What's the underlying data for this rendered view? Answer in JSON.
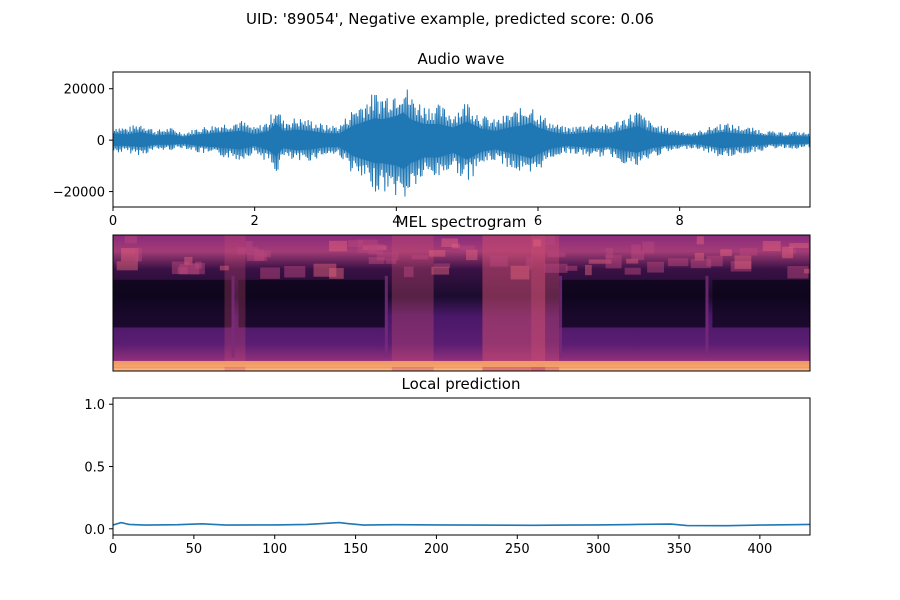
{
  "figure": {
    "suptitle": "UID: '89054', Negative example, predicted score: 0.06"
  },
  "colors": {
    "line": "#1f77b4"
  },
  "chart_data": [
    {
      "type": "line",
      "title": "Audio wave",
      "xlabel": "",
      "ylabel": "",
      "xlim": [
        0,
        9.84
      ],
      "ylim": [
        -26000,
        26500
      ],
      "x_ticks": [
        0,
        2,
        4,
        6,
        8
      ],
      "x_tick_labels": [
        "0",
        "2",
        "4",
        "6",
        "8"
      ],
      "y_ticks": [
        -20000,
        0,
        20000
      ],
      "y_tick_labels": [
        "−20000",
        "0",
        "20000"
      ],
      "envelope": {
        "x": [
          0,
          0.2,
          0.4,
          0.6,
          0.8,
          1.0,
          1.2,
          1.4,
          1.6,
          1.8,
          2.0,
          2.2,
          2.3,
          2.4,
          2.6,
          2.8,
          3.0,
          3.2,
          3.4,
          3.6,
          3.7,
          3.8,
          4.0,
          4.1,
          4.2,
          4.4,
          4.6,
          4.8,
          5.0,
          5.2,
          5.4,
          5.6,
          5.8,
          5.9,
          6.0,
          6.2,
          6.4,
          6.6,
          6.8,
          7.0,
          7.2,
          7.4,
          7.6,
          7.8,
          8.0,
          8.2,
          8.4,
          8.6,
          8.8,
          9.0,
          9.2,
          9.4,
          9.6,
          9.84
        ],
        "max": [
          6000,
          5000,
          7000,
          4000,
          5000,
          3000,
          5000,
          6000,
          7000,
          8000,
          5000,
          8000,
          15000,
          8000,
          9000,
          8000,
          6000,
          6000,
          13000,
          17000,
          19000,
          18000,
          21000,
          24000,
          18000,
          14000,
          14000,
          11000,
          16000,
          10000,
          8000,
          11000,
          13000,
          15000,
          11000,
          7000,
          5000,
          6000,
          7000,
          6000,
          9000,
          12000,
          7000,
          5000,
          4000,
          3000,
          5000,
          7000,
          6000,
          5000,
          4000,
          3000,
          3500,
          3000
        ],
        "min": [
          -5000,
          -5000,
          -6000,
          -4000,
          -4000,
          -3000,
          -5000,
          -6000,
          -7000,
          -8000,
          -5000,
          -9000,
          -14000,
          -7000,
          -9000,
          -8000,
          -6000,
          -6000,
          -14000,
          -18000,
          -20000,
          -20000,
          -22000,
          -25000,
          -20000,
          -15000,
          -15000,
          -11000,
          -17000,
          -10000,
          -8000,
          -11000,
          -14000,
          -16000,
          -12000,
          -7000,
          -5000,
          -6000,
          -7000,
          -6000,
          -9000,
          -11000,
          -7000,
          -5000,
          -4000,
          -3000,
          -5000,
          -7000,
          -6000,
          -5000,
          -4000,
          -3000,
          -3500,
          -3000
        ]
      }
    },
    {
      "type": "heatmap",
      "title": "MEL spectrogram",
      "xlabel": "",
      "ylabel": "",
      "axes": "off"
    },
    {
      "type": "line",
      "title": "Local prediction",
      "xlabel": "",
      "ylabel": "",
      "xlim": [
        0,
        431
      ],
      "ylim": [
        -0.05,
        1.05
      ],
      "x_ticks": [
        0,
        50,
        100,
        150,
        200,
        250,
        300,
        350,
        400
      ],
      "x_tick_labels": [
        "0",
        "50",
        "100",
        "150",
        "200",
        "250",
        "300",
        "350",
        "400"
      ],
      "y_ticks": [
        0.0,
        0.5,
        1.0
      ],
      "y_tick_labels": [
        "0.0",
        "0.5",
        "1.0"
      ],
      "x": [
        0,
        5,
        10,
        20,
        40,
        55,
        70,
        100,
        120,
        140,
        145,
        155,
        175,
        200,
        225,
        260,
        280,
        300,
        320,
        345,
        355,
        380,
        400,
        420,
        431
      ],
      "y": [
        0.03,
        0.05,
        0.035,
        0.03,
        0.033,
        0.04,
        0.03,
        0.031,
        0.035,
        0.05,
        0.042,
        0.03,
        0.033,
        0.031,
        0.03,
        0.028,
        0.03,
        0.031,
        0.034,
        0.038,
        0.026,
        0.025,
        0.03,
        0.033,
        0.035
      ]
    }
  ]
}
